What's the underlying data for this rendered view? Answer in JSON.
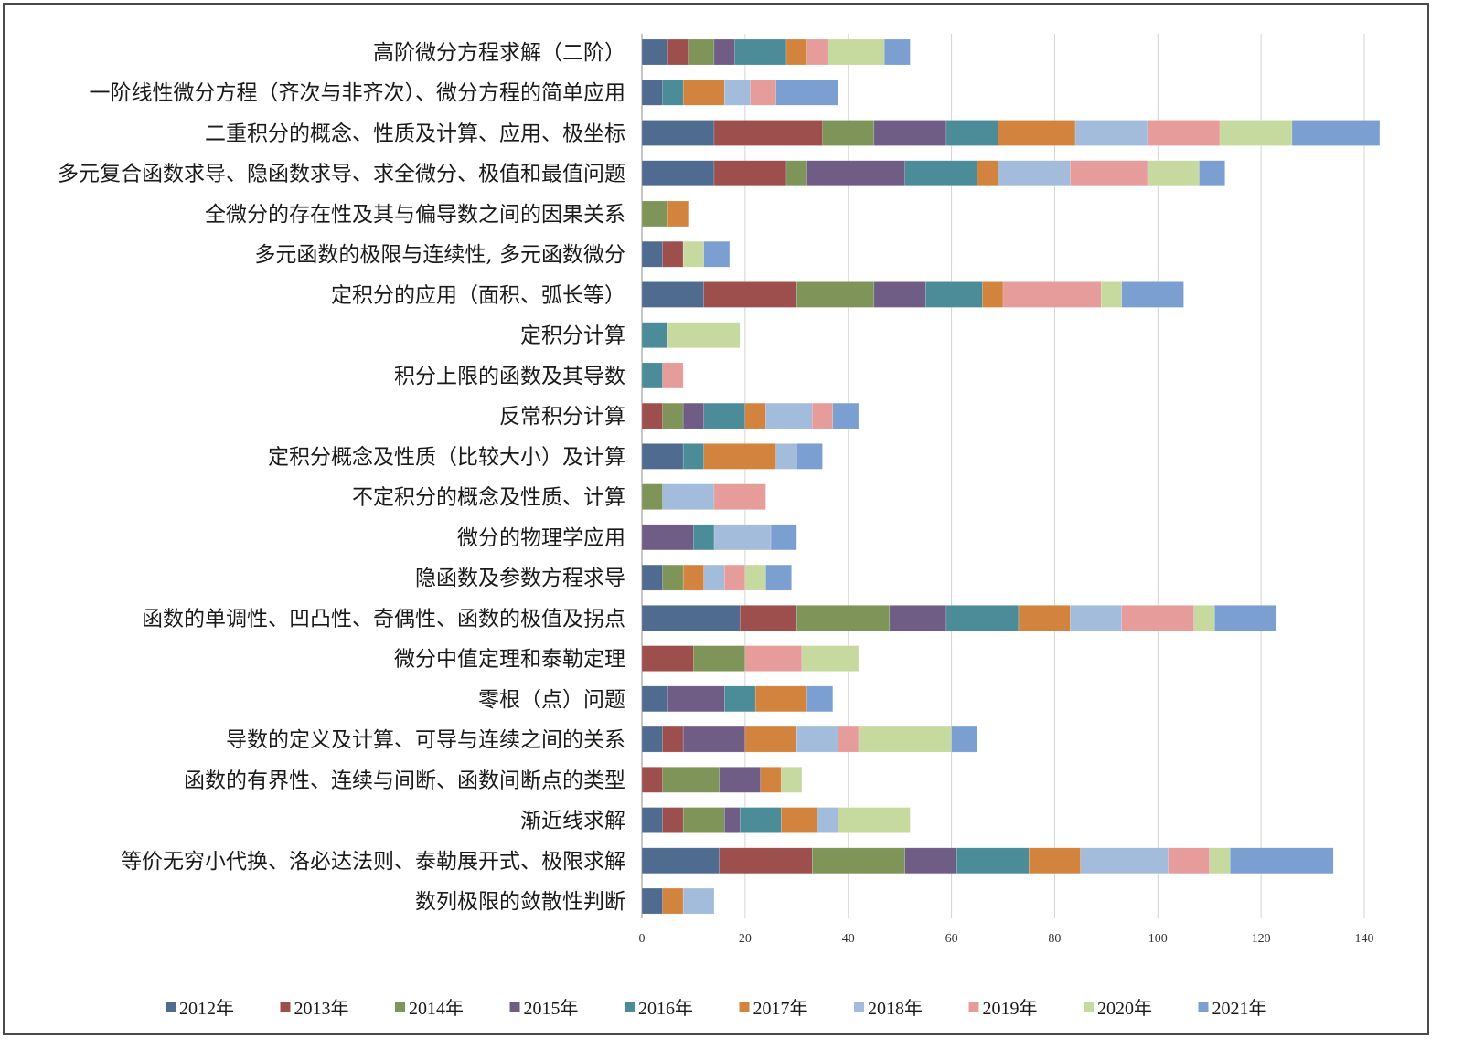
{
  "chart_data": {
    "type": "bar",
    "orientation": "horizontal",
    "stacked": true,
    "title": "",
    "xlabel": "",
    "ylabel": "",
    "xlim": [
      0,
      140
    ],
    "xticks": [
      0,
      20,
      40,
      60,
      80,
      100,
      120,
      140
    ],
    "grid": "vertical",
    "legend_position": "bottom",
    "categories": [
      "高阶微分方程求解（二阶）",
      "一阶线性微分方程（齐次与非齐次）、微分方程的简单应用",
      "二重积分的概念、性质及计算、应用、极坐标",
      "多元复合函数求导、隐函数求导、求全微分、极值和最值问题",
      "全微分的存在性及其与偏导数之间的因果关系",
      "多元函数的极限与连续性, 多元函数微分",
      "定积分的应用（面积、弧长等）",
      "定积分计算",
      "积分上限的函数及其导数",
      "反常积分计算",
      "定积分概念及性质（比较大小）及计算",
      "不定积分的概念及性质、计算",
      "微分的物理学应用",
      "隐函数及参数方程求导",
      "函数的单调性、凹凸性、奇偶性、函数的极值及拐点",
      "微分中值定理和泰勒定理",
      "零根（点）问题",
      "导数的定义及计算、可导与连续之间的关系",
      "函数的有界性、连续与间断、函数间断点的类型",
      "渐近线求解",
      "等价无穷小代换、洛必达法则、泰勒展开式、极限求解",
      "数列极限的敛散性判断"
    ],
    "series": [
      {
        "name": "2012年",
        "color": "#4f6b8f",
        "values": [
          5,
          4,
          14,
          14,
          0,
          4,
          12,
          0,
          0,
          0,
          8,
          0,
          0,
          4,
          19,
          0,
          5,
          4,
          0,
          4,
          15,
          4
        ]
      },
      {
        "name": "2013年",
        "color": "#9c4f4c",
        "values": [
          4,
          0,
          21,
          14,
          0,
          4,
          18,
          0,
          0,
          4,
          0,
          0,
          0,
          0,
          11,
          10,
          0,
          4,
          4,
          4,
          18,
          0
        ]
      },
      {
        "name": "2014年",
        "color": "#7e9458",
        "values": [
          5,
          0,
          10,
          4,
          5,
          0,
          15,
          0,
          0,
          4,
          0,
          4,
          0,
          4,
          18,
          10,
          0,
          0,
          11,
          8,
          18,
          0
        ]
      },
      {
        "name": "2015年",
        "color": "#6f5d86",
        "values": [
          4,
          0,
          14,
          19,
          0,
          0,
          10,
          0,
          0,
          4,
          0,
          0,
          10,
          0,
          11,
          0,
          11,
          12,
          8,
          3,
          10,
          0
        ]
      },
      {
        "name": "2016年",
        "color": "#4b8c98",
        "values": [
          10,
          4,
          10,
          14,
          0,
          0,
          11,
          5,
          4,
          8,
          4,
          0,
          4,
          0,
          14,
          0,
          6,
          0,
          0,
          8,
          14,
          0
        ]
      },
      {
        "name": "2017年",
        "color": "#d2843e",
        "values": [
          4,
          8,
          15,
          4,
          4,
          0,
          4,
          0,
          0,
          4,
          14,
          0,
          0,
          4,
          10,
          0,
          10,
          10,
          4,
          7,
          10,
          4
        ]
      },
      {
        "name": "2018年",
        "color": "#a3bcdb",
        "values": [
          0,
          5,
          14,
          14,
          0,
          0,
          0,
          0,
          0,
          9,
          4,
          10,
          11,
          4,
          10,
          0,
          0,
          8,
          0,
          4,
          17,
          6
        ]
      },
      {
        "name": "2019年",
        "color": "#e59c9b",
        "values": [
          4,
          5,
          14,
          15,
          0,
          0,
          19,
          0,
          4,
          4,
          0,
          10,
          0,
          4,
          14,
          11,
          0,
          4,
          0,
          0,
          8,
          0
        ]
      },
      {
        "name": "2020年",
        "color": "#c6d99e",
        "values": [
          11,
          0,
          14,
          10,
          0,
          4,
          4,
          14,
          0,
          0,
          0,
          0,
          0,
          4,
          4,
          11,
          0,
          18,
          4,
          14,
          4,
          0
        ]
      },
      {
        "name": "2021年",
        "color": "#7a9fd0",
        "values": [
          5,
          12,
          17,
          5,
          0,
          5,
          12,
          0,
          0,
          5,
          5,
          0,
          5,
          5,
          12,
          0,
          5,
          5,
          0,
          0,
          20,
          0
        ]
      }
    ]
  }
}
